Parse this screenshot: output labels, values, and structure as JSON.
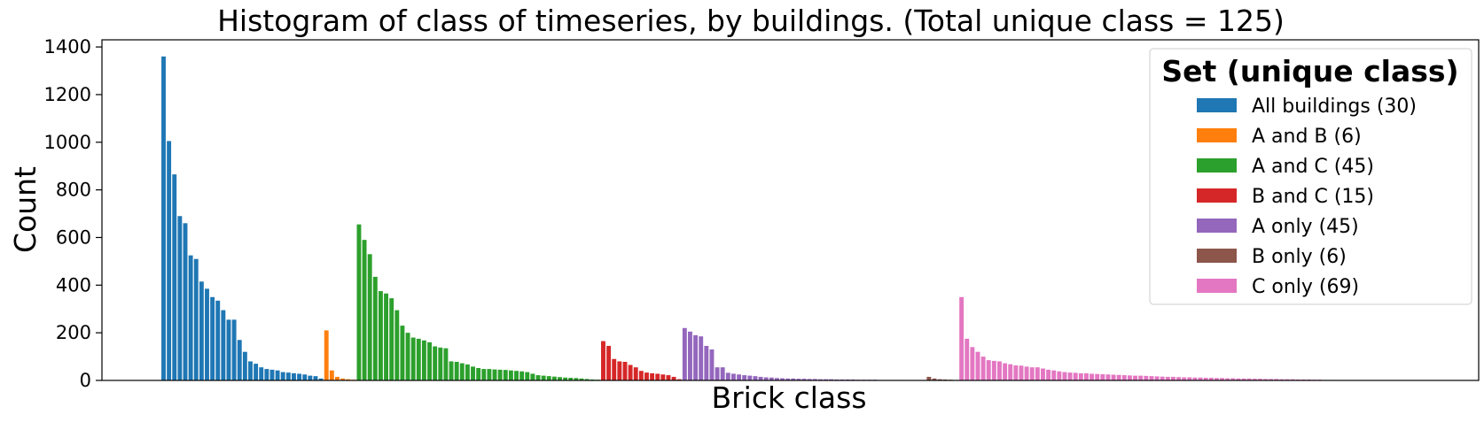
{
  "chart_data": {
    "type": "bar",
    "title": "Histogram of class of timeseries, by buildings. (Total unique class = 125)",
    "xlabel": "Brick class",
    "ylabel": "Count",
    "ylim": [
      0,
      1430
    ],
    "yticks": [
      0,
      200,
      400,
      600,
      800,
      1000,
      1200,
      1400
    ],
    "grid": false,
    "legend": {
      "title": "Set (unique class)",
      "placement": "upper right"
    },
    "series": [
      {
        "name": "All buildings (30)",
        "color": "#1f77b4",
        "values": [
          1360,
          1005,
          865,
          690,
          660,
          525,
          510,
          415,
          385,
          350,
          335,
          295,
          255,
          255,
          170,
          120,
          80,
          70,
          55,
          48,
          45,
          42,
          35,
          33,
          30,
          28,
          25,
          20,
          18,
          8
        ]
      },
      {
        "name": "A and B (6)",
        "color": "#ff7f0e",
        "values": [
          210,
          42,
          15,
          8,
          5,
          3
        ]
      },
      {
        "name": "A and C (45)",
        "color": "#2ca02c",
        "values": [
          655,
          590,
          530,
          435,
          375,
          365,
          345,
          295,
          230,
          200,
          180,
          175,
          168,
          160,
          143,
          138,
          135,
          80,
          78,
          72,
          67,
          58,
          52,
          48,
          48,
          46,
          45,
          44,
          42,
          40,
          38,
          35,
          28,
          22,
          20,
          18,
          16,
          14,
          12,
          11,
          10,
          8,
          6,
          4,
          3
        ]
      },
      {
        "name": "B and C (15)",
        "color": "#d62728",
        "values": [
          165,
          145,
          90,
          80,
          78,
          65,
          55,
          40,
          33,
          30,
          28,
          25,
          22,
          15,
          5
        ]
      },
      {
        "name": "A only (45)",
        "color": "#9467bd",
        "values": [
          220,
          205,
          190,
          185,
          145,
          130,
          55,
          55,
          32,
          28,
          25,
          22,
          20,
          18,
          15,
          13,
          12,
          10,
          9,
          8,
          8,
          7,
          7,
          6,
          6,
          5,
          5,
          5,
          4,
          4,
          4,
          4,
          3,
          3,
          3,
          3,
          2,
          2,
          2,
          2,
          2,
          1,
          1,
          1,
          1
        ]
      },
      {
        "name": "B only (6)",
        "color": "#8c564b",
        "values": [
          15,
          8,
          5,
          4,
          3,
          2
        ]
      },
      {
        "name": "C only (69)",
        "color": "#e377c2",
        "values": [
          350,
          175,
          140,
          120,
          100,
          85,
          82,
          80,
          72,
          68,
          63,
          62,
          58,
          55,
          55,
          50,
          45,
          42,
          38,
          35,
          33,
          32,
          30,
          30,
          28,
          27,
          26,
          25,
          24,
          23,
          22,
          21,
          20,
          20,
          19,
          18,
          17,
          16,
          15,
          15,
          14,
          13,
          13,
          12,
          12,
          11,
          11,
          10,
          10,
          9,
          9,
          8,
          8,
          8,
          7,
          7,
          6,
          6,
          6,
          5,
          5,
          5,
          4,
          4,
          4,
          3,
          3,
          2,
          2
        ]
      }
    ]
  }
}
